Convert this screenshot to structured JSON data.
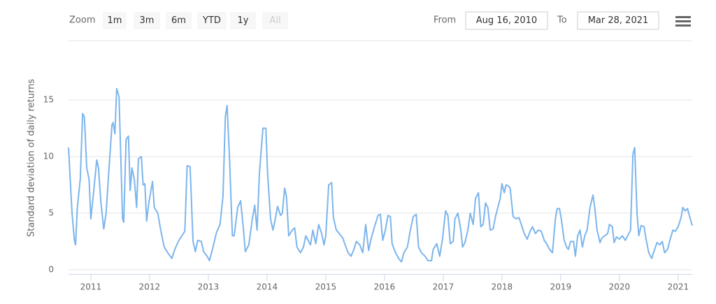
{
  "toolbar": {
    "zoom_label": "Zoom",
    "buttons": [
      "1m",
      "3m",
      "6m",
      "YTD",
      "1y",
      "All"
    ],
    "from_label": "From",
    "from_date": "Aug 16, 2010",
    "to_label": "To",
    "to_date": "Mar 28, 2021"
  },
  "chart_data": {
    "type": "line",
    "ylabel": "Standard deviation of daily returns",
    "color": "#7cb5ec",
    "grid": true,
    "xlim": [
      2010.62,
      2021.24
    ],
    "xticks": [
      2011,
      2012,
      2013,
      2014,
      2015,
      2016,
      2017,
      2018,
      2019,
      2020,
      2021
    ],
    "ylim": [
      0,
      20
    ],
    "yticks": [
      0,
      5,
      10,
      15
    ],
    "x": [
      2010.62,
      2010.68,
      2010.72,
      2010.74,
      2010.77,
      2010.82,
      2010.86,
      2010.89,
      2010.93,
      2010.97,
      2011.0,
      2011.05,
      2011.1,
      2011.13,
      2011.17,
      2011.22,
      2011.26,
      2011.31,
      2011.36,
      2011.38,
      2011.41,
      2011.44,
      2011.48,
      2011.51,
      2011.54,
      2011.56,
      2011.6,
      2011.64,
      2011.67,
      2011.7,
      2011.74,
      2011.78,
      2011.81,
      2011.86,
      2011.89,
      2011.92,
      2011.95,
      2011.99,
      2012.05,
      2012.08,
      2012.14,
      2012.19,
      2012.25,
      2012.31,
      2012.38,
      2012.43,
      2012.49,
      2012.55,
      2012.6,
      2012.64,
      2012.69,
      2012.74,
      2012.78,
      2012.82,
      2012.88,
      2012.92,
      2012.98,
      2013.02,
      2013.08,
      2013.14,
      2013.2,
      2013.25,
      2013.29,
      2013.32,
      2013.36,
      2013.41,
      2013.44,
      2013.5,
      2013.55,
      2013.6,
      2013.63,
      2013.69,
      2013.75,
      2013.79,
      2013.83,
      2013.87,
      2013.93,
      2013.98,
      2014.01,
      2014.06,
      2014.1,
      2014.13,
      2014.18,
      2014.23,
      2014.26,
      2014.3,
      2014.33,
      2014.37,
      2014.43,
      2014.47,
      2014.51,
      2014.57,
      2014.62,
      2014.66,
      2014.7,
      2014.74,
      2014.78,
      2014.83,
      2014.88,
      2014.93,
      2014.97,
      2015.0,
      2015.05,
      2015.1,
      2015.13,
      2015.18,
      2015.23,
      2015.29,
      2015.33,
      2015.38,
      2015.43,
      2015.48,
      2015.52,
      2015.58,
      2015.63,
      2015.68,
      2015.73,
      2015.77,
      2015.83,
      2015.89,
      2015.93,
      2015.97,
      2016.01,
      2016.06,
      2016.1,
      2016.13,
      2016.18,
      2016.24,
      2016.29,
      2016.33,
      2016.39,
      2016.44,
      2016.49,
      2016.54,
      2016.58,
      2016.63,
      2016.69,
      2016.74,
      2016.8,
      2016.83,
      2016.89,
      2016.94,
      2016.99,
      2017.04,
      2017.08,
      2017.12,
      2017.17,
      2017.2,
      2017.25,
      2017.3,
      2017.33,
      2017.37,
      2017.42,
      2017.46,
      2017.51,
      2017.55,
      2017.6,
      2017.64,
      2017.68,
      2017.72,
      2017.76,
      2017.8,
      2017.85,
      2017.89,
      2017.93,
      2017.97,
      2018.0,
      2018.04,
      2018.07,
      2018.11,
      2018.14,
      2018.19,
      2018.24,
      2018.29,
      2018.33,
      2018.38,
      2018.43,
      2018.48,
      2018.52,
      2018.57,
      2018.62,
      2018.67,
      2018.72,
      2018.76,
      2018.81,
      2018.86,
      2018.91,
      2018.94,
      2018.98,
      2019.01,
      2019.06,
      2019.1,
      2019.13,
      2019.17,
      2019.22,
      2019.25,
      2019.29,
      2019.33,
      2019.37,
      2019.41,
      2019.45,
      2019.5,
      2019.55,
      2019.58,
      2019.62,
      2019.67,
      2019.7,
      2019.75,
      2019.8,
      2019.83,
      2019.88,
      2019.91,
      2019.95,
      2020.0,
      2020.05,
      2020.1,
      2020.14,
      2020.19,
      2020.23,
      2020.26,
      2020.3,
      2020.33,
      2020.37,
      2020.42,
      2020.45,
      2020.5,
      2020.55,
      2020.6,
      2020.64,
      2020.69,
      2020.73,
      2020.77,
      2020.82,
      2020.86,
      2020.91,
      2020.95,
      2021.0,
      2021.05,
      2021.08,
      2021.12,
      2021.16,
      2021.19,
      2021.24
    ],
    "values": [
      10.8,
      5,
      2.6,
      2.2,
      5.5,
      8,
      13.8,
      13.5,
      9,
      8,
      4.5,
      7,
      9.7,
      9,
      6,
      3.6,
      5,
      9,
      12.8,
      13,
      12,
      16,
      15.3,
      10,
      4.5,
      4.2,
      11.5,
      11.8,
      7,
      9,
      8,
      5.5,
      9.8,
      10,
      7.5,
      7.6,
      4.3,
      6,
      7.8,
      5.5,
      5,
      3.5,
      2,
      1.5,
      1,
      1.8,
      2.5,
      3,
      3.4,
      9.2,
      9.1,
      2.5,
      1.6,
      2.6,
      2.5,
      1.6,
      1.2,
      0.8,
      2,
      3.3,
      4,
      6.5,
      13.5,
      14.5,
      10,
      3,
      3,
      5.5,
      6.1,
      3.5,
      1.6,
      2.2,
      4.5,
      5.7,
      3.5,
      8.5,
      12.5,
      12.5,
      8.5,
      4.5,
      3.5,
      4.2,
      5.6,
      4.8,
      5,
      7.2,
      6.5,
      3,
      3.5,
      3.7,
      2,
      1.5,
      2,
      3,
      2.6,
      2.2,
      3.5,
      2.3,
      4,
      3.2,
      2.2,
      3,
      7.5,
      7.7,
      4.6,
      3.5,
      3.2,
      2.8,
      2.2,
      1.5,
      1.2,
      1.8,
      2.5,
      2.2,
      1.5,
      4,
      1.7,
      2.7,
      3.8,
      4.8,
      4.9,
      2.6,
      3.4,
      4.8,
      4.7,
      2.3,
      1.6,
      1,
      0.7,
      1.5,
      2,
      3.5,
      4.7,
      4.9,
      2,
      1.5,
      1.2,
      0.8,
      0.8,
      1.8,
      2.3,
      1.2,
      2.8,
      5.2,
      4.8,
      2.3,
      2.5,
      4.5,
      5,
      3.5,
      2,
      2.4,
      3.5,
      5,
      4,
      6.3,
      6.8,
      3.8,
      4,
      5.9,
      5.5,
      3.5,
      3.6,
      4.7,
      5.5,
      6.3,
      7.6,
      6.8,
      7.5,
      7.4,
      7.2,
      4.7,
      4.5,
      4.6,
      4,
      3.2,
      2.7,
      3.4,
      3.8,
      3.2,
      3.5,
      3.4,
      2.6,
      2.3,
      1.8,
      1.5,
      4.5,
      5.4,
      5.4,
      4.5,
      2.6,
      2,
      1.8,
      2.5,
      2.5,
      1.2,
      3,
      3.5,
      2,
      3,
      3.5,
      5.5,
      6.6,
      5.5,
      3.5,
      2.4,
      2.8,
      3,
      3.2,
      4,
      3.8,
      2.4,
      2.9,
      2.7,
      3,
      2.6,
      3,
      3.5,
      10.2,
      10.8,
      5,
      3,
      3.9,
      3.8,
      2.8,
      1.5,
      1,
      1.8,
      2.4,
      2.2,
      2.5,
      1.5,
      1.8,
      2.6,
      3.5,
      3.4,
      3.8,
      4.6,
      5.5,
      5.2,
      5.4,
      4.8,
      3.9
    ]
  }
}
